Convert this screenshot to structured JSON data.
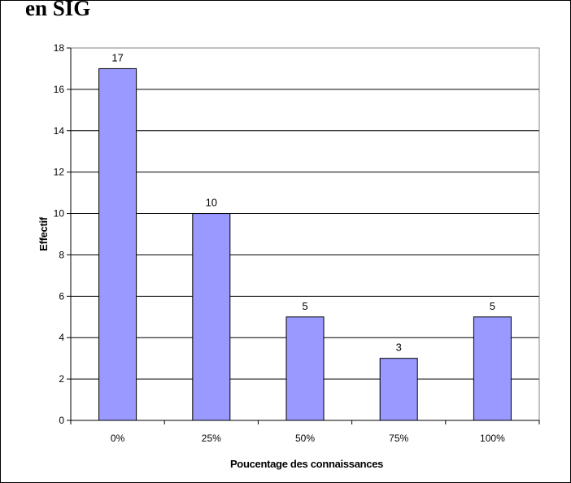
{
  "page": {
    "title": "en SIG"
  },
  "chart_data": {
    "type": "bar",
    "categories": [
      "0%",
      "25%",
      "50%",
      "75%",
      "100%"
    ],
    "values": [
      17,
      10,
      5,
      3,
      5
    ],
    "data_labels": [
      "17",
      "10",
      "5",
      "3",
      "5"
    ],
    "y_ticks": [
      "0",
      "2",
      "4",
      "6",
      "8",
      "10",
      "12",
      "14",
      "16",
      "18"
    ],
    "title": "",
    "xlabel": "Poucentage des connaissances",
    "ylabel": "Effectif",
    "ylim": [
      0,
      18
    ],
    "grid": true,
    "legend": "none",
    "colors": {
      "bar": "#9999ff",
      "bar_border": "#000000",
      "grid": "#000000",
      "plot_border": "#808080",
      "background": "#ffffff"
    }
  }
}
